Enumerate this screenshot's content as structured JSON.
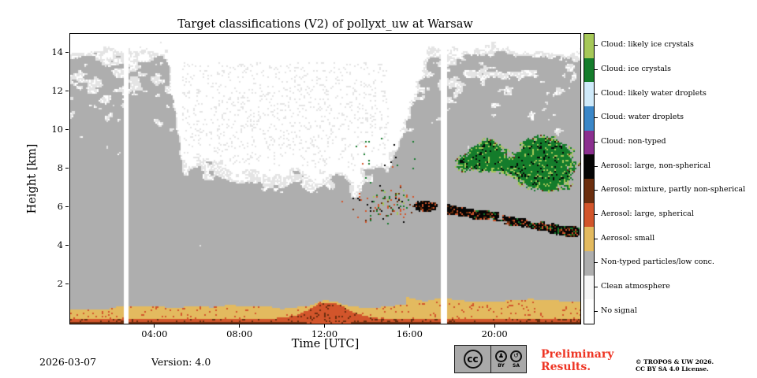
{
  "figure": {
    "footer": {
      "date": "2026-03-07",
      "version": "Version: 4.0",
      "preliminary_line1": "Preliminary",
      "preliminary_line2": "Results.",
      "copyright_line1": "© TROPOS & UW 2026.",
      "copyright_line2": "CC BY SA 4.0 License.",
      "cc_label_cc": "cc",
      "cc_label_by": "BY",
      "cc_label_sa": "SA"
    },
    "icons": {
      "cc_by_glyph": "♟",
      "cc_sa_glyph": "↺"
    }
  },
  "chart_data": {
    "type": "heatmap",
    "title": "Target classifications (V2) of pollyxt_uw at Warsaw",
    "xlabel": "Time [UTC]",
    "ylabel": "Height [km]",
    "x_range_hours": [
      0,
      24
    ],
    "y_range_km": [
      0,
      15
    ],
    "x_ticks": [
      {
        "hour": 4,
        "label": "04:00"
      },
      {
        "hour": 8,
        "label": "08:00"
      },
      {
        "hour": 12,
        "label": "12:00"
      },
      {
        "hour": 16,
        "label": "16:00"
      },
      {
        "hour": 20,
        "label": "20:00"
      }
    ],
    "y_ticks": [
      2,
      4,
      6,
      8,
      10,
      12,
      14
    ],
    "legend_position": "right",
    "categories": [
      {
        "key": "likely_ice",
        "label": "Cloud: likely ice crystals",
        "color": "#a6c858"
      },
      {
        "key": "ice",
        "label": "Cloud: ice crystals",
        "color": "#147c2b"
      },
      {
        "key": "likely_water",
        "label": "Cloud: likely water droplets",
        "color": "#cfeafa"
      },
      {
        "key": "water",
        "label": "Cloud: water droplets",
        "color": "#3b87c8"
      },
      {
        "key": "cloud_nontyped",
        "label": "Cloud: non-typed",
        "color": "#8b2f8f"
      },
      {
        "key": "aer_large_nonsph",
        "label": "Aerosol: large, non-spherical",
        "color": "#050505"
      },
      {
        "key": "aer_mix",
        "label": "Aerosol: mixture, partly non-spherical",
        "color": "#6b2e0e"
      },
      {
        "key": "aer_large_sph",
        "label": "Aerosol: large, spherical",
        "color": "#d2552b"
      },
      {
        "key": "aer_small",
        "label": "Aerosol: small",
        "color": "#e3ba5f"
      },
      {
        "key": "nontyped_low",
        "label": "Non-typed particles/low conc.",
        "color": "#aeaeae"
      },
      {
        "key": "clean",
        "label": "Clean atmosphere",
        "color": "#f6f6f6"
      },
      {
        "key": "no_signal",
        "label": "No signal",
        "color": "#ffffff"
      }
    ],
    "data_gaps_hours": [
      [
        2.5,
        2.78
      ],
      [
        17.45,
        17.72
      ]
    ],
    "features": [
      {
        "name": "surface-dark-mixture-line",
        "category": "aer_mix",
        "t": [
          0,
          24
        ],
        "h": [
          0,
          0.1
        ]
      },
      {
        "name": "surface-aerosol-large-spherical-band",
        "category": "aer_large_sph",
        "t": [
          0,
          24
        ],
        "h": [
          0,
          0.3
        ],
        "note": "bulge up to ~1.0 km around 12:00 UTC"
      },
      {
        "name": "boundary-layer-aerosol-small-band",
        "category": "aer_small",
        "t": [
          0,
          24
        ],
        "h": [
          0.2,
          1.1
        ],
        "note": "thicker (to ~1.3 km) after ~16:00 UTC"
      },
      {
        "name": "non-typed-low-conc-field",
        "category": "nontyped_low",
        "t": [
          0,
          24
        ],
        "h": [
          0.8,
          15
        ],
        "note": "dense speckle below ~8.5 km all day; extends to 15 km before ~05:00 and after ~15:00"
      },
      {
        "name": "midday-clean-upper-troposphere",
        "category": "clean",
        "t": [
          5,
          15
        ],
        "h": [
          8.5,
          15
        ],
        "note": "mostly clean/no signal with sparse light speckle"
      },
      {
        "name": "evening-ice-cloud",
        "category": "ice",
        "t": [
          17.8,
          24
        ],
        "h": [
          6.3,
          10.2
        ],
        "note": "patches near 18:20 and 19:30, large mass 20:30-24:00"
      },
      {
        "name": "elevated-aerosol-black-layer",
        "category": "aer_large_nonsph",
        "t": [
          15.8,
          23.9
        ],
        "h": [
          4.5,
          6.6
        ],
        "note": "dense cluster 16:00-17:20 near 6.1 km, descending streak afterwards"
      },
      {
        "name": "scattered-mixed-specks",
        "category": "aer_mix",
        "t": [
          12.6,
          16.2
        ],
        "h": [
          5.1,
          7.4
        ]
      }
    ]
  }
}
